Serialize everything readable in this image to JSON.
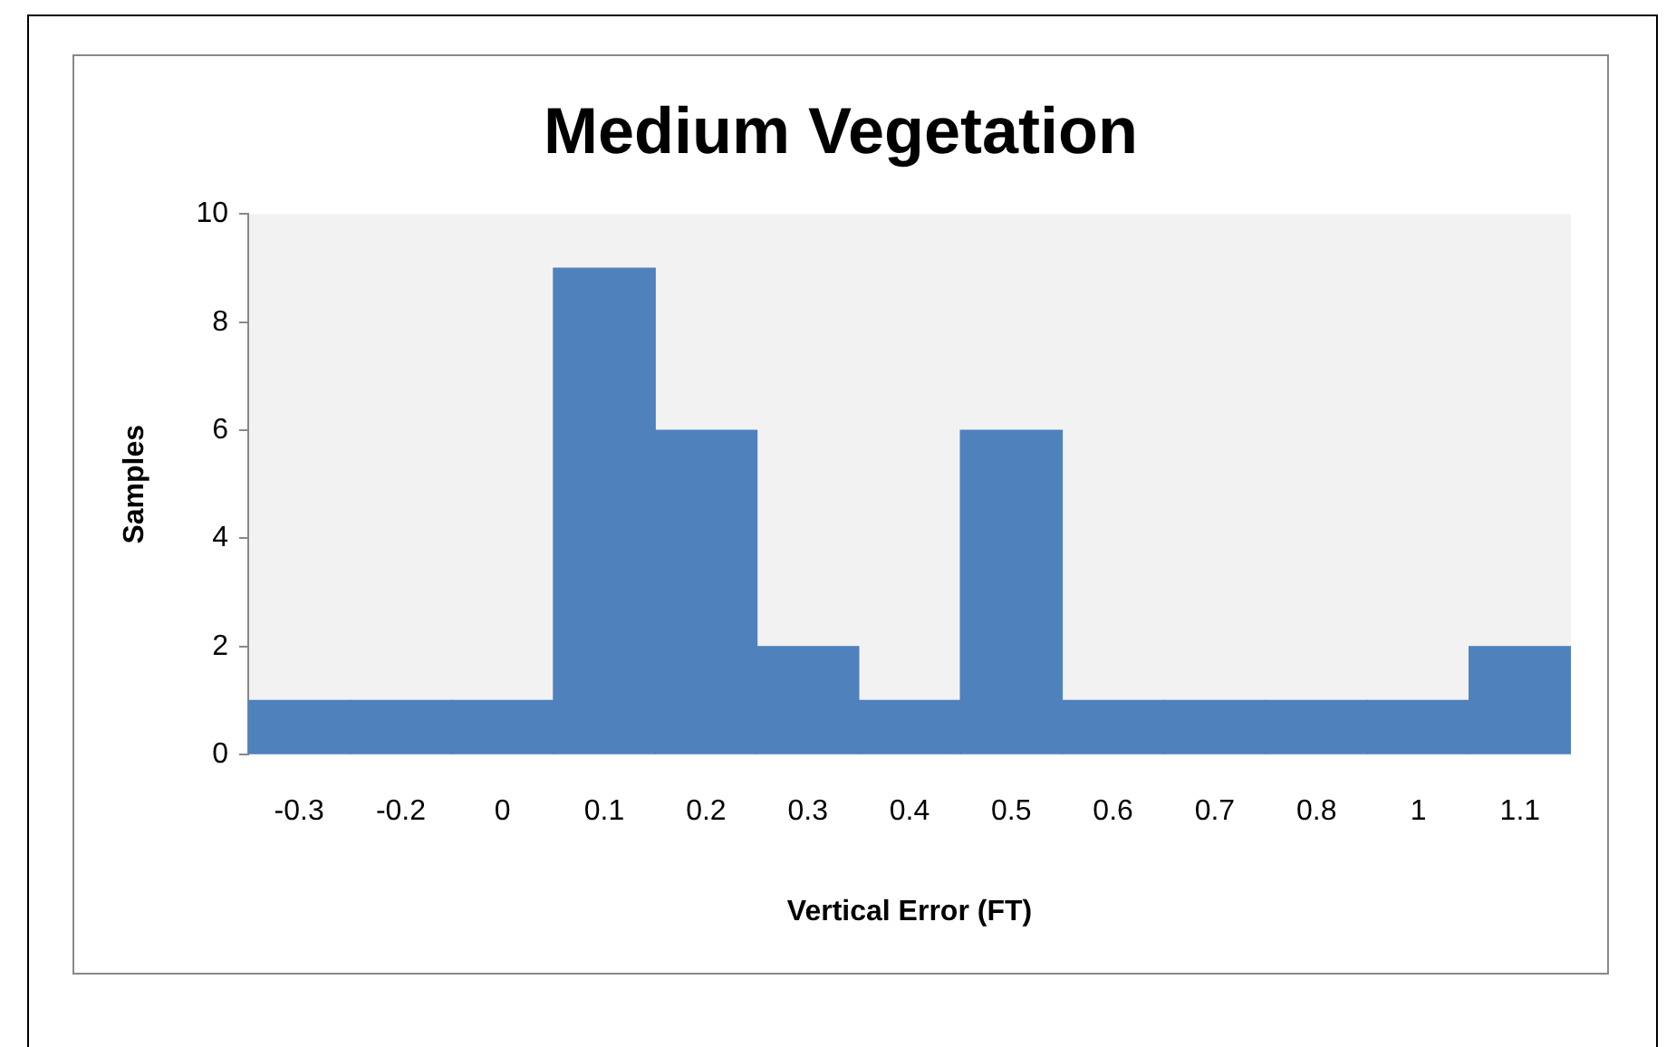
{
  "chart_data": {
    "type": "bar",
    "title": "Medium Vegetation",
    "xlabel": "Vertical Error (FT)",
    "ylabel": "Samples",
    "categories": [
      "-0.3",
      "-0.2",
      "0",
      "0.1",
      "0.2",
      "0.3",
      "0.4",
      "0.5",
      "0.6",
      "0.7",
      "0.8",
      "1",
      "1.1"
    ],
    "values": [
      1,
      1,
      1,
      9,
      6,
      2,
      1,
      6,
      1,
      1,
      1,
      1,
      2
    ],
    "color": "#4f81bd",
    "ylim": [
      0,
      10
    ],
    "yticks": [
      0,
      2,
      4,
      6,
      8,
      10
    ],
    "grid": false,
    "legend": false
  }
}
